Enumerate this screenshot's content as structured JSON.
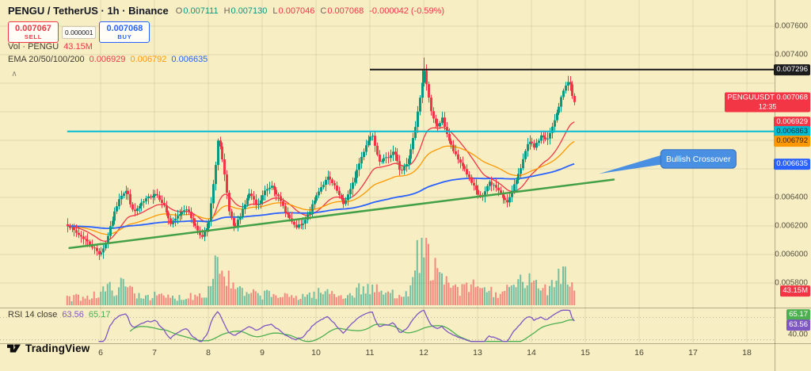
{
  "header": {
    "title": "PENGU / TetherUS · 1h · Binance",
    "ohlc": [
      {
        "label": "O",
        "value": "0.007111",
        "dir": "up"
      },
      {
        "label": "H",
        "value": "0.007130",
        "dir": "up"
      },
      {
        "label": "L",
        "value": "0.007046",
        "dir": "down"
      },
      {
        "label": "C",
        "value": "0.007068",
        "dir": "down"
      }
    ],
    "change": {
      "value": "-0.000042 (-0.59%)",
      "dir": "down"
    }
  },
  "trade_panel": {
    "sell_price": "0.007067",
    "sell_label": "SELL",
    "spread": "0.000001",
    "buy_price": "0.007068",
    "buy_label": "BUY"
  },
  "volume_legend": {
    "label": "Vol · PENGU",
    "value": "43.15M"
  },
  "ema_legend": {
    "label": "EMA 20/50/100/200",
    "values": [
      {
        "text": "0.006929",
        "color": "#f23645"
      },
      {
        "text": "0.006792",
        "color": "#ff9800"
      },
      {
        "text": "0.006635",
        "color": "#2962ff"
      }
    ]
  },
  "rsi_legend": {
    "label": "RSI 14 close",
    "values": [
      {
        "text": "63.56",
        "color": "#7e57c2"
      },
      {
        "text": "65.17",
        "color": "#4caf50"
      }
    ]
  },
  "icons": {
    "pane_collapse": "∧"
  },
  "logo": {
    "text": "TradingView"
  },
  "price_axis": {
    "ticks": [
      {
        "price": 0.0076,
        "label": "0.007600"
      },
      {
        "price": 0.0074,
        "label": "0.007400"
      },
      {
        "price": 0.0064,
        "label": "0.006400"
      },
      {
        "price": 0.0062,
        "label": "0.006200"
      },
      {
        "price": 0.006,
        "label": "0.006000"
      },
      {
        "price": 0.0058,
        "label": "0.005800"
      }
    ],
    "badges": [
      {
        "price": 0.007296,
        "label": "0.007296",
        "bg": "#1c1c1c",
        "fg": "#ffffff",
        "name": "price-badge-black-line"
      },
      {
        "price": 0.007068,
        "label": "PENGUUSDT  0.007068",
        "sub": "12:35",
        "bg": "#f23645",
        "fg": "#ffffff",
        "name": "price-badge-current"
      },
      {
        "price": 0.006929,
        "label": "0.006929",
        "bg": "#f23645",
        "fg": "#ffffff",
        "name": "price-badge-ema20"
      },
      {
        "price": 0.006863,
        "label": "0.006863",
        "bg": "#00bcd4",
        "fg": "#0a3339",
        "name": "price-badge-teal-line"
      },
      {
        "price": 0.006792,
        "label": "0.006792",
        "bg": "#ff9800",
        "fg": "#3a2600",
        "name": "price-badge-ema50"
      },
      {
        "price": 0.006635,
        "label": "0.006635",
        "bg": "#2962ff",
        "fg": "#ffffff",
        "name": "price-badge-ema200"
      }
    ],
    "volume_badge": {
      "label": "43.15M",
      "bg": "#f23645",
      "fg": "#ffffff"
    },
    "rsi_ticks": [
      {
        "value": 40,
        "label": "40.00"
      }
    ],
    "rsi_badges": [
      {
        "value": 65.17,
        "label": "65.17",
        "bg": "#4caf50",
        "fg": "#ffffff",
        "stack": -7
      },
      {
        "value": 63.56,
        "label": "63.56",
        "bg": "#7e57c2",
        "fg": "#ffffff",
        "stack": 5
      }
    ]
  },
  "time_axis": {
    "days": [
      6,
      7,
      8,
      9,
      10,
      11,
      12,
      13,
      14,
      15,
      16,
      17,
      18
    ]
  },
  "colors": {
    "background": "#f8eec4",
    "up": "#089981",
    "down": "#f23645",
    "vol_up": "rgba(8,153,129,0.55)",
    "vol_down": "rgba(242,54,69,0.55)",
    "grid": "rgba(95,85,40,0.14)",
    "separator": "rgba(70,62,35,0.38)",
    "teal_line": "#00bcd4",
    "black_line": "#161616",
    "trend_green": "#43a047",
    "callout_blue": "#4a90e2",
    "rsi": "#7e57c2",
    "rsi_ma": "#4caf50"
  },
  "chart_data": {
    "type": "candlestick",
    "symbol": "PENGUUSDT",
    "interval": "1h",
    "exchange": "Binance",
    "title": "PENGU / TetherUS · 1h · Binance",
    "last_price": 0.007068,
    "last_candle": {
      "open": 0.007111,
      "high": 0.00713,
      "low": 0.007046,
      "close": 0.007068
    },
    "x_axis_days": [
      6,
      18
    ],
    "price_range_shown": [
      0.0058,
      0.0076
    ],
    "price_path": [
      [
        5.38,
        0.00621
      ],
      [
        5.55,
        0.00615
      ],
      [
        5.72,
        0.0061
      ],
      [
        5.88,
        0.00604
      ],
      [
        5.98,
        0.006
      ],
      [
        6.08,
        0.00607
      ],
      [
        6.22,
        0.00625
      ],
      [
        6.35,
        0.00641
      ],
      [
        6.48,
        0.00645
      ],
      [
        6.6,
        0.00629
      ],
      [
        6.72,
        0.00634
      ],
      [
        6.88,
        0.0064
      ],
      [
        7.02,
        0.00643
      ],
      [
        7.15,
        0.00636
      ],
      [
        7.3,
        0.00621
      ],
      [
        7.45,
        0.00628
      ],
      [
        7.58,
        0.00633
      ],
      [
        7.72,
        0.00622
      ],
      [
        7.88,
        0.00612
      ],
      [
        8.0,
        0.00621
      ],
      [
        8.1,
        0.00652
      ],
      [
        8.18,
        0.00683
      ],
      [
        8.28,
        0.0066
      ],
      [
        8.38,
        0.0063
      ],
      [
        8.48,
        0.00617
      ],
      [
        8.62,
        0.00631
      ],
      [
        8.76,
        0.00643
      ],
      [
        8.9,
        0.00633
      ],
      [
        9.04,
        0.00644
      ],
      [
        9.18,
        0.00649
      ],
      [
        9.32,
        0.00638
      ],
      [
        9.46,
        0.00628
      ],
      [
        9.6,
        0.00619
      ],
      [
        9.76,
        0.00621
      ],
      [
        9.92,
        0.00634
      ],
      [
        10.06,
        0.00646
      ],
      [
        10.22,
        0.00654
      ],
      [
        10.36,
        0.00646
      ],
      [
        10.5,
        0.00635
      ],
      [
        10.64,
        0.00646
      ],
      [
        10.78,
        0.00662
      ],
      [
        10.92,
        0.00677
      ],
      [
        11.04,
        0.00685
      ],
      [
        11.16,
        0.00666
      ],
      [
        11.3,
        0.00667
      ],
      [
        11.44,
        0.00673
      ],
      [
        11.56,
        0.00658
      ],
      [
        11.7,
        0.00664
      ],
      [
        11.82,
        0.00685
      ],
      [
        11.92,
        0.0071
      ],
      [
        12.0,
        0.00729
      ],
      [
        12.06,
        0.00718
      ],
      [
        12.14,
        0.00697
      ],
      [
        12.24,
        0.00689
      ],
      [
        12.34,
        0.00695
      ],
      [
        12.46,
        0.0068
      ],
      [
        12.6,
        0.00668
      ],
      [
        12.74,
        0.00661
      ],
      [
        12.88,
        0.0065
      ],
      [
        13.0,
        0.00642
      ],
      [
        13.1,
        0.0064
      ],
      [
        13.2,
        0.00651
      ],
      [
        13.34,
        0.00647
      ],
      [
        13.46,
        0.0064
      ],
      [
        13.56,
        0.00637
      ],
      [
        13.68,
        0.00649
      ],
      [
        13.82,
        0.00664
      ],
      [
        13.94,
        0.00679
      ],
      [
        14.06,
        0.00675
      ],
      [
        14.18,
        0.00684
      ],
      [
        14.28,
        0.00679
      ],
      [
        14.4,
        0.00691
      ],
      [
        14.52,
        0.00706
      ],
      [
        14.62,
        0.00719
      ],
      [
        14.7,
        0.00721
      ],
      [
        14.78,
        0.007111
      ],
      [
        14.82,
        0.007068
      ]
    ],
    "extremes": {
      "high": [
        12.0,
        0.00738
      ],
      "secondary_high": [
        14.7,
        0.00725
      ],
      "low": [
        5.98,
        0.00597
      ]
    },
    "volume_path": [
      [
        5.38,
        0.1
      ],
      [
        5.9,
        0.16
      ],
      [
        6.2,
        0.26
      ],
      [
        6.45,
        0.3
      ],
      [
        6.7,
        0.16
      ],
      [
        7.0,
        0.14
      ],
      [
        7.4,
        0.11
      ],
      [
        7.8,
        0.16
      ],
      [
        8.0,
        0.22
      ],
      [
        8.15,
        0.72
      ],
      [
        8.25,
        0.55
      ],
      [
        8.45,
        0.28
      ],
      [
        8.7,
        0.16
      ],
      [
        9.1,
        0.17
      ],
      [
        9.5,
        0.12
      ],
      [
        9.9,
        0.16
      ],
      [
        10.2,
        0.2
      ],
      [
        10.6,
        0.14
      ],
      [
        10.9,
        0.28
      ],
      [
        11.1,
        0.22
      ],
      [
        11.5,
        0.16
      ],
      [
        11.8,
        0.3
      ],
      [
        11.95,
        1.0
      ],
      [
        12.05,
        0.85
      ],
      [
        12.2,
        0.5
      ],
      [
        12.4,
        0.32
      ],
      [
        12.7,
        0.22
      ],
      [
        13.0,
        0.3
      ],
      [
        13.3,
        0.18
      ],
      [
        13.6,
        0.22
      ],
      [
        13.9,
        0.4
      ],
      [
        14.1,
        0.26
      ],
      [
        14.35,
        0.3
      ],
      [
        14.5,
        0.52
      ],
      [
        14.62,
        0.58
      ],
      [
        14.72,
        0.4
      ],
      [
        14.82,
        0.16
      ]
    ],
    "levels": [
      {
        "type": "hline",
        "price": 0.006863,
        "from_day": 5.38,
        "color": "#00bcd4",
        "name": "teal"
      },
      {
        "type": "hline",
        "price": 0.007296,
        "from_day": 11.0,
        "color": "#161616",
        "name": "black"
      }
    ],
    "trendline": {
      "from": [
        5.42,
        0.006045
      ],
      "to": [
        15.53,
        0.006525
      ]
    },
    "callout": {
      "text": "Bullish Crossover",
      "tip": [
        15.25,
        0.006565
      ],
      "box_day": [
        16.4,
        17.8
      ],
      "box_price": [
        0.006605,
        0.006735
      ]
    },
    "emas": [
      {
        "period": 20,
        "color": "#f23645",
        "last": 0.006929
      },
      {
        "period": 50,
        "color": "#ff9800",
        "last": 0.006792
      },
      {
        "period": 200,
        "color": "#2962ff",
        "last": 0.006635
      }
    ],
    "rsi": {
      "period": 14,
      "last": 63.56,
      "ma_last": 65.17,
      "bands": [
        70,
        30
      ],
      "axis_label": "40.00"
    }
  }
}
